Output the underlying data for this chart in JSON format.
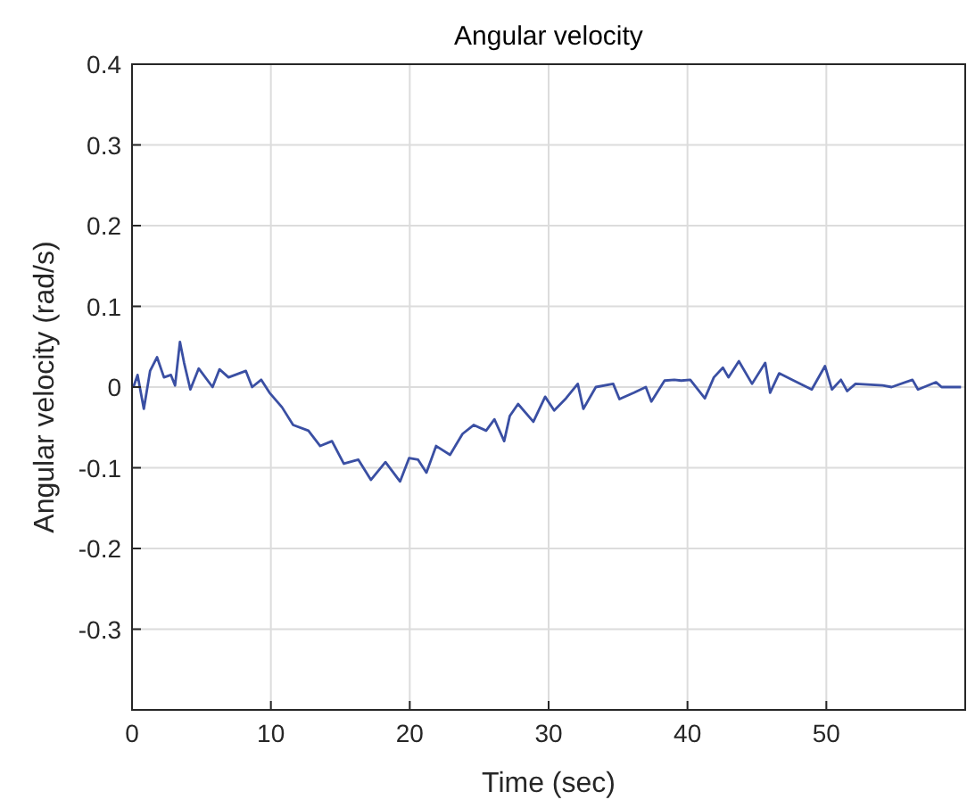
{
  "chart_data": {
    "type": "line",
    "title": "Angular velocity",
    "xlabel": "Time (sec)",
    "ylabel": "Angular velocity (rad/s)",
    "x": [
      0.1,
      0.4,
      0.85,
      1.3,
      1.8,
      2.3,
      2.8,
      3.1,
      3.45,
      3.75,
      4.2,
      4.8,
      5.8,
      6.3,
      6.95,
      8.2,
      8.65,
      9.3,
      9.9,
      10.8,
      11.6,
      12.7,
      13.55,
      14.4,
      15.25,
      16.3,
      17.2,
      18.25,
      19.3,
      19.95,
      20.6,
      21.2,
      21.9,
      22.9,
      23.8,
      24.6,
      25.5,
      26.1,
      26.8,
      27.2,
      27.8,
      28.9,
      29.75,
      30.4,
      31.25,
      32.1,
      32.5,
      33.4,
      34.65,
      35.1,
      36.15,
      37,
      37.4,
      38.35,
      39.05,
      39.55,
      40.2,
      41.25,
      41.9,
      42.55,
      42.95,
      43.7,
      44.65,
      45.6,
      45.95,
      46.6,
      47.65,
      48.95,
      49.9,
      50.4,
      51.05,
      51.5,
      52.1,
      54.05,
      54.7,
      56.2,
      56.6,
      57.9,
      58.3,
      59.7
    ],
    "series": [
      {
        "color": "#3a4fa3",
        "values": [
          0,
          0.015,
          -0.027,
          0.02,
          0.037,
          0.012,
          0.015,
          0.002,
          0.056,
          0.03,
          -0.003,
          0.023,
          0,
          0.022,
          0.012,
          0.02,
          0,
          0.009,
          -0.007,
          -0.025,
          -0.047,
          -0.054,
          -0.073,
          -0.067,
          -0.095,
          -0.09,
          -0.115,
          -0.093,
          -0.117,
          -0.088,
          -0.09,
          -0.106,
          -0.073,
          -0.084,
          -0.058,
          -0.047,
          -0.054,
          -0.04,
          -0.067,
          -0.036,
          -0.021,
          -0.043,
          -0.012,
          -0.029,
          -0.014,
          0.004,
          -0.027,
          0,
          0.004,
          -0.015,
          -0.007,
          0,
          -0.018,
          0.008,
          0.009,
          0.008,
          0.009,
          -0.014,
          0.012,
          0.024,
          0.012,
          0.032,
          0.004,
          0.03,
          -0.007,
          0.017,
          0.008,
          -0.003,
          0.026,
          -0.003,
          0.009,
          -0.005,
          0.004,
          0.002,
          0,
          0.009,
          -0.003,
          0.006,
          0,
          0
        ]
      }
    ],
    "xlim": [
      0,
      60
    ],
    "xticks": [
      0,
      10,
      20,
      30,
      40,
      50
    ],
    "ylim": [
      -0.4,
      0.4
    ],
    "yticks": [
      -0.3,
      -0.2,
      -0.1,
      0,
      0.1,
      0.2,
      0.3,
      0.4
    ],
    "grid": true
  }
}
